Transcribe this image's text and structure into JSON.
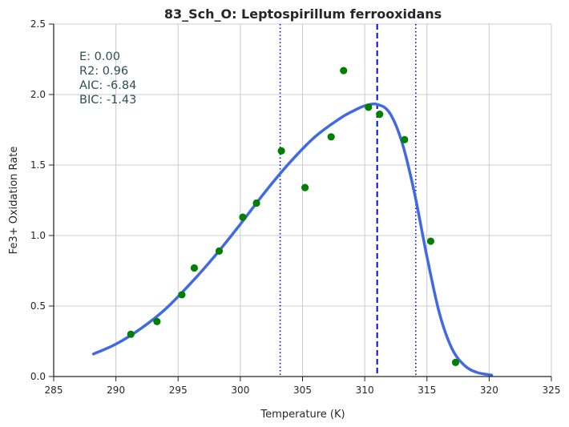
{
  "chart_data": {
    "type": "scatter",
    "title": "83_Sch_O: Leptospirillum ferrooxidans",
    "xlabel": "Temperature (K)",
    "ylabel": "Fe3+ Oxidation Rate",
    "xlim": [
      285,
      325
    ],
    "ylim": [
      0.0,
      2.5
    ],
    "xticks": [
      "285",
      "290",
      "295",
      "300",
      "305",
      "310",
      "315",
      "320",
      "325"
    ],
    "yticks": [
      "0.0",
      "0.5",
      "1.0",
      "1.5",
      "2.0",
      "2.5"
    ],
    "grid": true,
    "stats": [
      "E:  0.00",
      "R2:  0.96",
      "AIC: -6.84",
      "BIC: -1.43"
    ],
    "points": {
      "x": [
        291.2,
        293.3,
        295.3,
        296.3,
        298.3,
        300.2,
        301.3,
        303.3,
        305.2,
        307.3,
        308.3,
        310.3,
        311.2,
        313.2,
        315.3,
        317.3
      ],
      "y": [
        0.3,
        0.39,
        0.58,
        0.77,
        0.89,
        1.13,
        1.23,
        1.6,
        1.34,
        1.7,
        2.17,
        1.91,
        1.86,
        1.68,
        0.96,
        0.1
      ],
      "color": "#008000"
    },
    "fit_curve": {
      "x": [
        288.2,
        290,
        292,
        294,
        296,
        298,
        300,
        302,
        304,
        306,
        308,
        309,
        310,
        311,
        312,
        313,
        314,
        315,
        316,
        317,
        318,
        319,
        320.2
      ],
      "y": [
        0.16,
        0.23,
        0.34,
        0.48,
        0.66,
        0.86,
        1.08,
        1.31,
        1.52,
        1.7,
        1.83,
        1.88,
        1.92,
        1.93,
        1.87,
        1.66,
        1.3,
        0.85,
        0.45,
        0.2,
        0.08,
        0.03,
        0.01
      ],
      "color": "#4169e1"
    },
    "vlines": [
      {
        "x": 303.2,
        "style": "dotted",
        "color": "#0000ff"
      },
      {
        "x": 311.0,
        "style": "dashed",
        "color": "#0000ff"
      },
      {
        "x": 314.1,
        "style": "dotted",
        "color": "#0000ff"
      }
    ]
  }
}
